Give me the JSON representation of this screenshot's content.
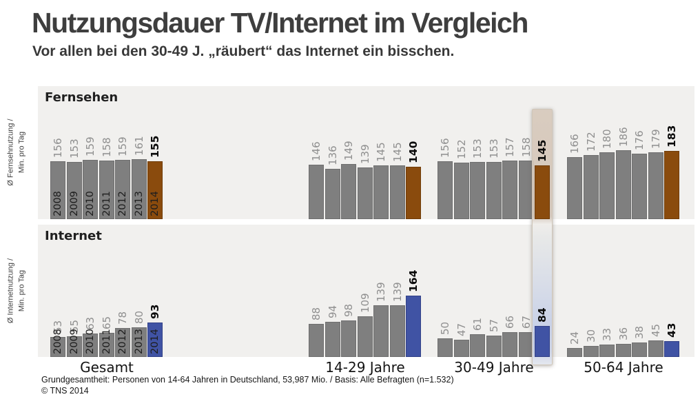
{
  "title": "Nutzungsdauer TV/Internet im Vergleich",
  "subtitle": "Vor allen bei den 30-49 J. „räubert“ das Internet ein bisschen.",
  "footnote": "Grundgesamtheit: Personen von 14-64 Jahren in Deutschland, 53,987 Mio. / Basis: Alle Befragten (n=1.532)",
  "copyright": "© TNS 2014",
  "chart_data": {
    "type": "bar",
    "unit": "Min. pro Tag",
    "years": [
      "2008",
      "2009",
      "2010",
      "2011",
      "2012",
      "2013",
      "2014"
    ],
    "groups": [
      "Gesamt",
      "14-29 Jahre",
      "30-49 Jahre",
      "50-64 Jahre"
    ],
    "highlight": {
      "group": "30-49 Jahre",
      "group_index": 2,
      "year": "2014"
    },
    "colors": {
      "bar": "#7f7f7f",
      "bar_border": "#6f6f6f",
      "tv_2014": "#8a4b0d",
      "internet_2014": "#4053a4",
      "panel_background": "#f1f0ee",
      "value_label_gray": "#8f8f8f",
      "value_label_black": "#0a0a0a"
    },
    "series": [
      {
        "name": "Fernsehen",
        "key": "tv",
        "axis_label": "Ø Fernsehnutzung /\nMin. pro Tag",
        "highlight_color": "#8a4b0d",
        "highlight_border": "#703c08",
        "values": [
          [
            156,
            153,
            159,
            158,
            159,
            161,
            155
          ],
          [
            146,
            136,
            149,
            139,
            145,
            145,
            140
          ],
          [
            156,
            152,
            153,
            153,
            157,
            158,
            145
          ],
          [
            166,
            172,
            180,
            186,
            176,
            179,
            183
          ]
        ]
      },
      {
        "name": "Internet",
        "key": "internet",
        "axis_label": "Ø Internetnutzung /\nMin. pro Tag",
        "highlight_color": "#4053a4",
        "highlight_border": "#324187",
        "values": [
          [
            53,
            55,
            63,
            65,
            78,
            80,
            93
          ],
          [
            88,
            94,
            98,
            109,
            139,
            139,
            164
          ],
          [
            50,
            47,
            61,
            57,
            66,
            67,
            84
          ],
          [
            24,
            30,
            33,
            36,
            38,
            45,
            43
          ]
        ]
      }
    ]
  }
}
